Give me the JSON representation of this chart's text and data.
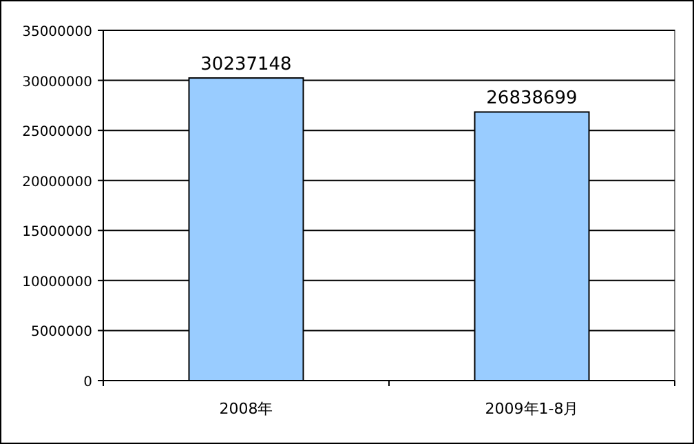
{
  "chart_data": {
    "type": "bar",
    "categories": [
      "2008年",
      "2009年1-8月"
    ],
    "values": [
      30237148,
      26838699
    ],
    "color": "#99ccff",
    "ylim": [
      0,
      35000000
    ],
    "yticks": [
      0,
      5000000,
      10000000,
      15000000,
      20000000,
      25000000,
      30000000,
      35000000
    ],
    "grid": "y",
    "data_labels": true
  }
}
